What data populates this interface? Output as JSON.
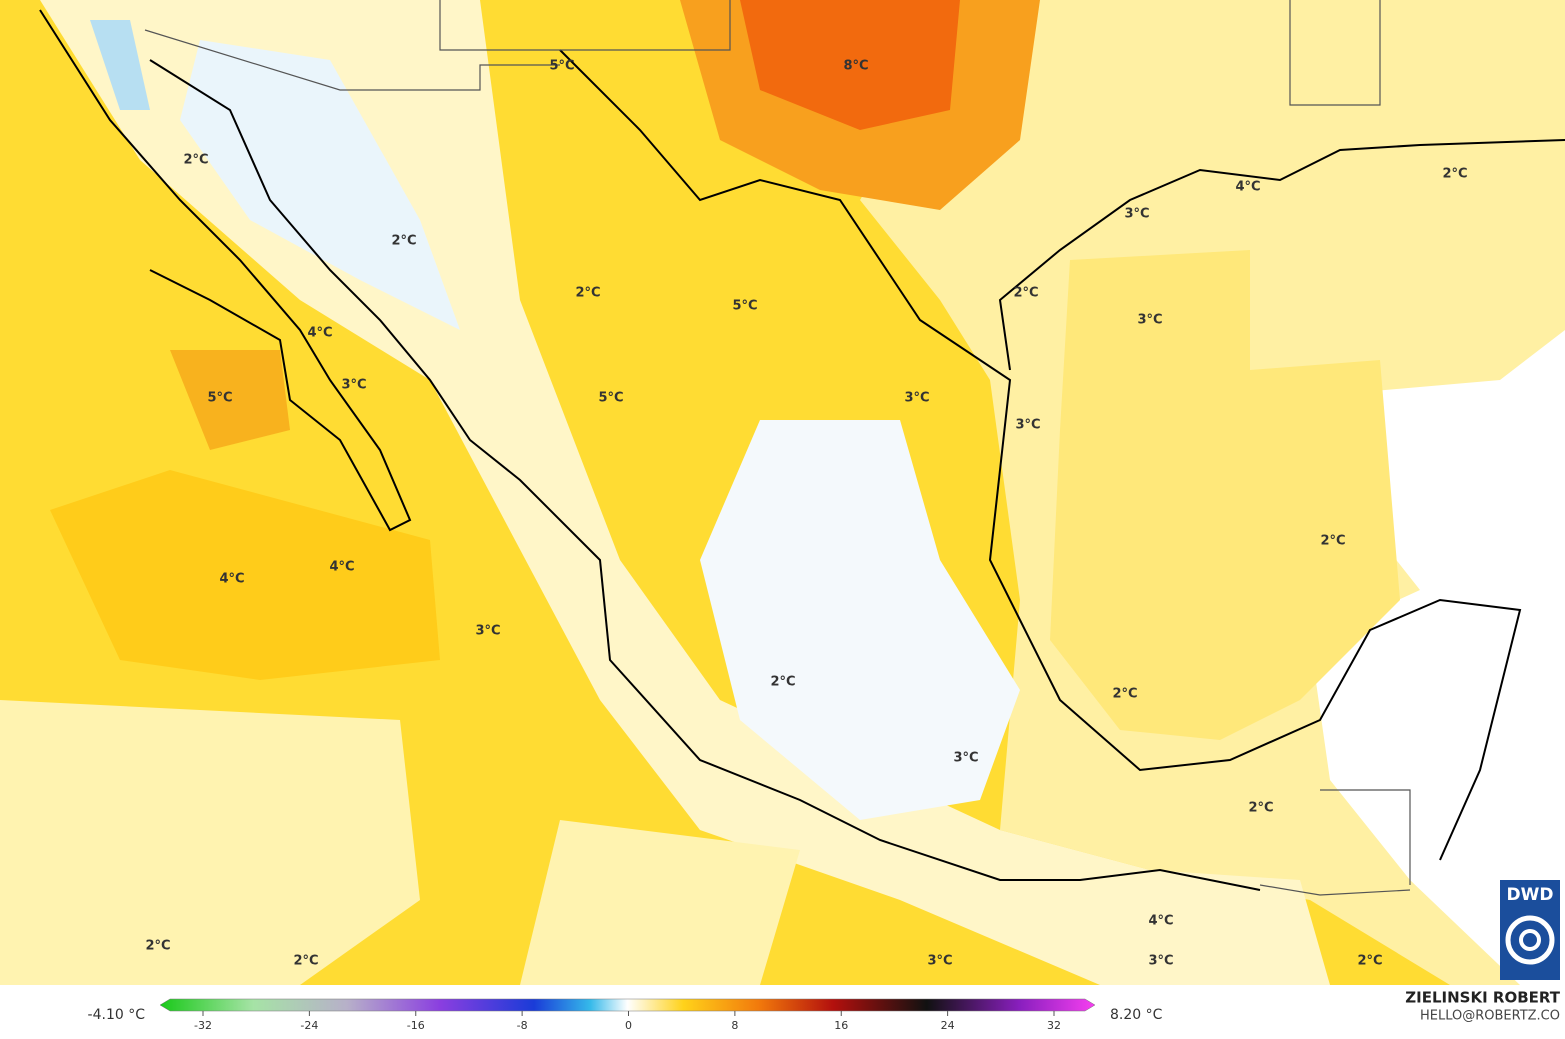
{
  "map_labels": [
    "5°C",
    "8°C",
    "2°C",
    "2°C",
    "4°C",
    "3°C",
    "2°C",
    "2°C",
    "2°C",
    "5°C",
    "3°C",
    "4°C",
    "3°C",
    "5°C",
    "5°C",
    "3°C",
    "3°C",
    "2°C",
    "4°C",
    "4°C",
    "3°C",
    "2°C",
    "2°C",
    "3°C",
    "2°C",
    "4°C",
    "2°C",
    "2°C",
    "3°C",
    "3°C",
    "2°C"
  ],
  "colorbar": {
    "min_label": "-4.10 °C",
    "max_label": "8.20 °C",
    "ticks": [
      -32,
      -24,
      -16,
      -8,
      0,
      8,
      16,
      24,
      32
    ]
  },
  "credit": {
    "author": "ZIELINSKI ROBERT",
    "contact": "HELLO@ROBERTZ.CO"
  },
  "logo": "DWD"
}
